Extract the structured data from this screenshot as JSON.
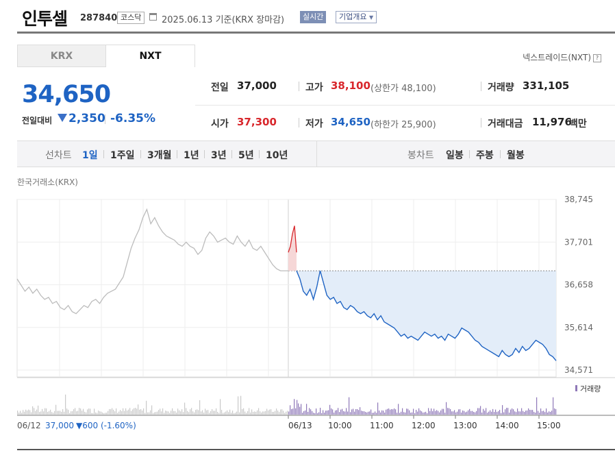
{
  "header": {
    "name": "인투셀",
    "code": "287840",
    "market_badge": "코스닥",
    "date_basis": "2025.06.13  기준(KRX 장마감)",
    "realtime_button": "실시간",
    "company_button": "기업개요"
  },
  "tabs": [
    {
      "label": "KRX",
      "selected": false
    },
    {
      "label": "NXT",
      "selected": true
    }
  ],
  "nxt_link": "넥스트레이드(NXT)",
  "quote": {
    "price": "34,650",
    "change_label": "전일대비",
    "change": "2,350",
    "change_pct": "-6.35%"
  },
  "stats": {
    "prev_close": {
      "label": "전일",
      "value": "37,000"
    },
    "open": {
      "label": "시가",
      "value": "37,300"
    },
    "high": {
      "label": "고가",
      "value": "38,100",
      "sub": "(상한가 48,100)"
    },
    "low": {
      "label": "저가",
      "value": "34,650",
      "sub": "(하한가 25,900)"
    },
    "volume": {
      "label": "거래량",
      "value": "331,105"
    },
    "amount": {
      "label": "거래대금",
      "value": "11,976",
      "unit": "백만"
    }
  },
  "periods": {
    "line_label": "선차트",
    "line_items": [
      "1일",
      "1주일",
      "3개월",
      "1년",
      "3년",
      "5년",
      "10년"
    ],
    "line_selected": "1일",
    "candle_label": "봉차트",
    "candle_items": [
      "일봉",
      "주봉",
      "월봉"
    ]
  },
  "exchange_label": "한국거래소(KRX)",
  "colors": {
    "up": "#d8262b",
    "down": "#1e63c3",
    "prev_day_line": "#bcbcbc",
    "fill": "#e3edf9",
    "volume": "#8f78b8"
  },
  "chart_data": {
    "type": "line",
    "ylim": [
      34571,
      38745
    ],
    "y_ticks": [
      "38,745",
      "37,701",
      "36,658",
      "35,614",
      "34,571"
    ],
    "y_tick_values": [
      38745,
      37701,
      36658,
      35614,
      34571
    ],
    "reference_price": 37000,
    "x_ticks": [
      "06/13",
      "10:00",
      "11:00",
      "12:00",
      "13:00",
      "14:00",
      "15:00"
    ],
    "volume_label": "거래량",
    "footer_prev": "06/12",
    "footer_prev_price": "37,000",
    "footer_prev_change": "▼600 (-1.60%)",
    "prev_day_series": [
      36800,
      36650,
      36500,
      36600,
      36450,
      36550,
      36400,
      36300,
      36350,
      36200,
      36250,
      36100,
      36050,
      36150,
      36000,
      35950,
      36050,
      36150,
      36100,
      36250,
      36300,
      36200,
      36350,
      36450,
      36500,
      36550,
      36700,
      36850,
      37200,
      37550,
      37800,
      38000,
      38300,
      38500,
      38150,
      38300,
      38100,
      37950,
      37850,
      37800,
      37750,
      37650,
      37600,
      37700,
      37600,
      37550,
      37400,
      37500,
      37800,
      37950,
      37850,
      37700,
      37750,
      37800,
      37700,
      37650,
      37850,
      37700,
      37600,
      37750,
      37550,
      37500,
      37600,
      37450,
      37300,
      37150,
      37050,
      37000,
      37000,
      37000
    ],
    "pre_market_series": [
      37450,
      37600,
      37900,
      38100,
      37450
    ],
    "today_series": [
      37000,
      36800,
      36500,
      36400,
      36550,
      36300,
      36600,
      37000,
      36700,
      36400,
      36300,
      36350,
      36200,
      36250,
      36100,
      36050,
      36150,
      36100,
      36000,
      35950,
      36000,
      35900,
      35850,
      35950,
      35800,
      35900,
      35750,
      35700,
      35650,
      35600,
      35500,
      35400,
      35450,
      35350,
      35400,
      35350,
      35300,
      35400,
      35500,
      35450,
      35400,
      35450,
      35350,
      35400,
      35300,
      35450,
      35400,
      35350,
      35450,
      35600,
      35550,
      35500,
      35400,
      35300,
      35250,
      35150,
      35100,
      35050,
      35000,
      34950,
      34900,
      35050,
      34950,
      34900,
      34950,
      35100,
      35000,
      35150,
      35050,
      35100,
      35200,
      35300,
      35250,
      35200,
      35100,
      34950,
      34900,
      34800
    ]
  }
}
